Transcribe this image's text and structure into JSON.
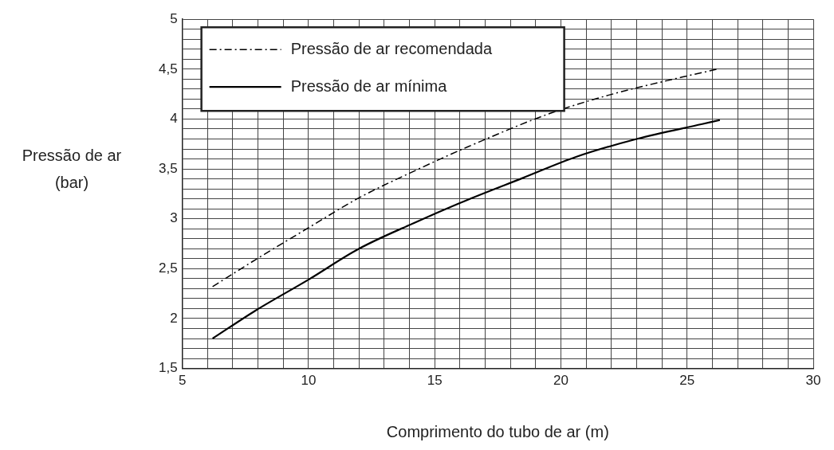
{
  "chart_data": {
    "type": "line",
    "xlabel": "Comprimento do tubo de ar (m)",
    "ylabel": "Pressão de ar (bar)",
    "xlim": [
      5,
      30
    ],
    "xticks": [
      5,
      {
        "value": 6,
        "label": null
      },
      {
        "value": 7,
        "label": null
      },
      {
        "value": 8,
        "label": null
      },
      {
        "value": 9,
        "label": null
      },
      10,
      {
        "value": 11,
        "label": null
      },
      {
        "value": 12,
        "label": null
      },
      {
        "value": 13,
        "label": null
      },
      {
        "value": 14,
        "label": null
      },
      15,
      {
        "value": 16,
        "label": null
      },
      {
        "value": 17,
        "label": null
      },
      {
        "value": 18,
        "label": null
      },
      {
        "value": 19,
        "label": null
      },
      20,
      {
        "value": 21,
        "label": null
      },
      {
        "value": 22,
        "label": null
      },
      {
        "value": 23,
        "label": null
      },
      {
        "value": 24,
        "label": null
      },
      25,
      {
        "value": 26,
        "label": null
      },
      {
        "value": 27,
        "label": null
      },
      {
        "value": 28,
        "label": null
      },
      {
        "value": 29,
        "label": null
      },
      30
    ],
    "ylim": [
      1.5,
      5
    ],
    "yticks": [
      {
        "value": 1.5,
        "label": "1,5"
      },
      {
        "value": 1.6,
        "label": null
      },
      {
        "value": 1.7,
        "label": null
      },
      {
        "value": 1.8,
        "label": null
      },
      {
        "value": 1.9,
        "label": null
      },
      2,
      {
        "value": 2.1,
        "label": null
      },
      {
        "value": 2.2,
        "label": null
      },
      {
        "value": 2.3,
        "label": null
      },
      {
        "value": 2.4,
        "label": null
      },
      {
        "value": 2.5,
        "label": "2,5"
      },
      {
        "value": 2.6,
        "label": null
      },
      {
        "value": 2.7,
        "label": null
      },
      {
        "value": 2.8,
        "label": null
      },
      {
        "value": 2.9,
        "label": null
      },
      3,
      {
        "value": 3.1,
        "label": null
      },
      {
        "value": 3.2,
        "label": null
      },
      {
        "value": 3.3,
        "label": null
      },
      {
        "value": 3.4,
        "label": null
      },
      {
        "value": 3.5,
        "label": "3,5"
      },
      {
        "value": 3.6,
        "label": null
      },
      {
        "value": 3.7,
        "label": null
      },
      {
        "value": 3.8,
        "label": null
      },
      {
        "value": 3.9,
        "label": null
      },
      4,
      {
        "value": 4.1,
        "label": null
      },
      {
        "value": 4.2,
        "label": null
      },
      {
        "value": 4.3,
        "label": null
      },
      {
        "value": 4.4,
        "label": null
      },
      {
        "value": 4.5,
        "label": "4,5"
      },
      {
        "value": 4.6,
        "label": null
      },
      {
        "value": 4.7,
        "label": null
      },
      {
        "value": 4.8,
        "label": null
      },
      {
        "value": 4.9,
        "label": null
      },
      5
    ],
    "grid": true,
    "legend": "top left",
    "marker": "none",
    "series": [
      {
        "name": "Pressão de ar recomendada",
        "color": "#000000",
        "line_style": "dashed",
        "x": [
          6.2,
          7.9,
          10,
          12,
          14.2,
          16.3,
          19.5,
          21.9,
          24.8,
          26.2
        ],
        "values": [
          2.32,
          2.59,
          2.91,
          3.21,
          3.48,
          3.72,
          4.05,
          4.24,
          4.42,
          4.5
        ]
      },
      {
        "name": "Pressão de ar mínima",
        "color": "#000000",
        "line_style": "solid",
        "x": [
          6.2,
          7.9,
          10,
          12,
          14.2,
          16.3,
          18.5,
          20.6,
          23,
          25.6,
          26.3
        ],
        "values": [
          1.8,
          2.08,
          2.39,
          2.7,
          2.96,
          3.19,
          3.41,
          3.62,
          3.8,
          3.95,
          3.99
        ]
      }
    ]
  }
}
